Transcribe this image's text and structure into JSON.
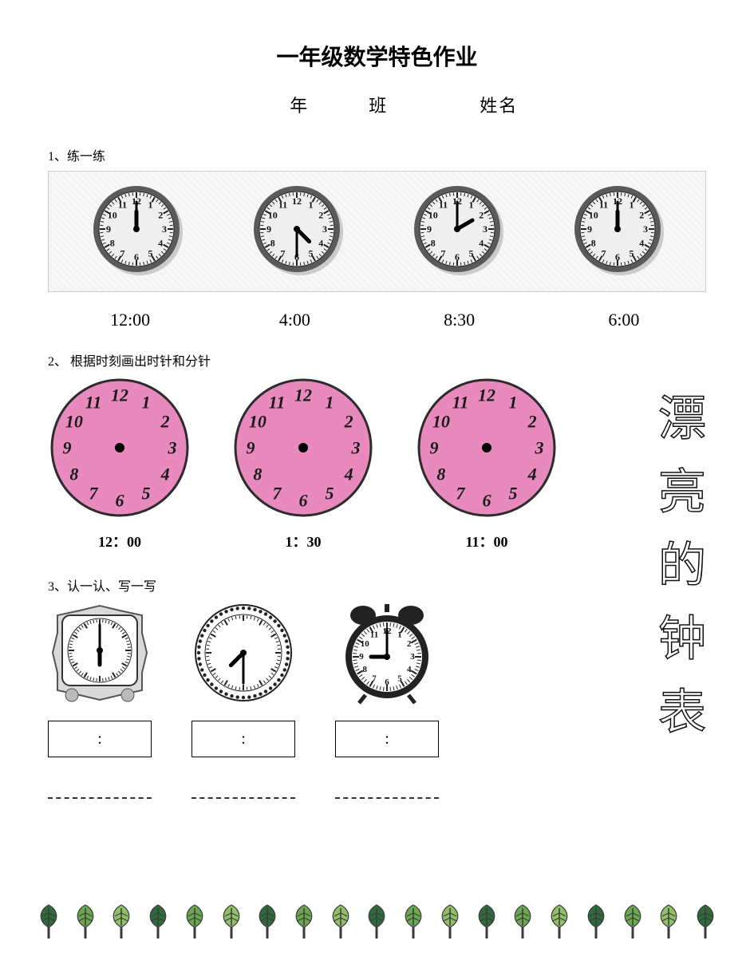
{
  "title": "一年级数学特色作业",
  "info": {
    "grade": "年",
    "class": "班",
    "name": "姓名"
  },
  "sec1": {
    "label": "1、练一练",
    "clocks": [
      {
        "hour": 12,
        "minute": 0
      },
      {
        "hour": 4,
        "minute": 30
      },
      {
        "hour": 2,
        "minute": 0
      },
      {
        "hour": 12,
        "minute": 0
      }
    ],
    "times": [
      "12:00",
      "4:00",
      "8:30",
      "6:00"
    ],
    "rim_color": "#5a5a5a",
    "shadow_color": "#7a7a7a",
    "face_color": "#efefef",
    "num_font": "serif"
  },
  "sec2": {
    "label": "2、  根据时刻画出时针和分针",
    "clocks": [
      {
        "time": "12：00"
      },
      {
        "time": "1：30"
      },
      {
        "time": "11：00"
      }
    ],
    "face_color": "#e98abf",
    "rim_color": "#2c2c2c",
    "num_color": "#1a1a1a",
    "num_style": "italic serif"
  },
  "vertical_text": [
    "漂",
    "亮",
    "的",
    "钟",
    "表"
  ],
  "sec3": {
    "label": "3、认一认、写一写",
    "clocks": [
      {
        "style": "square",
        "hour": 6,
        "minute": 0
      },
      {
        "style": "dotrim",
        "hour": 7,
        "minute": 30
      },
      {
        "style": "alarm",
        "hour": 9,
        "minute": 0
      }
    ],
    "box_text": ":"
  },
  "leaves": {
    "count": 19,
    "colors": [
      "#2f6b3a",
      "#6aa84f",
      "#8fbf67"
    ],
    "stem_color": "#3a3a3a"
  }
}
